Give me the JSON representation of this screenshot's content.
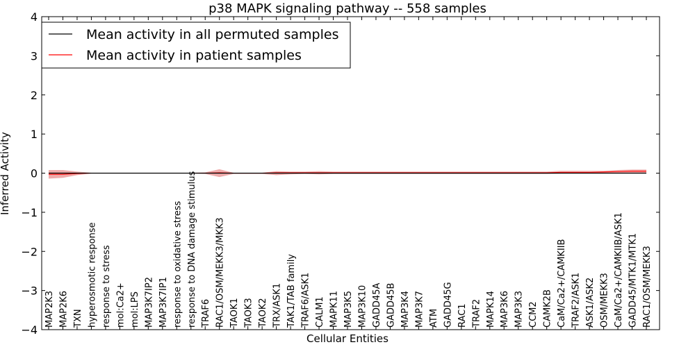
{
  "chart_data": {
    "type": "line",
    "title": "p38 MAPK signaling pathway -- 558 samples",
    "xlabel": "Cellular Entities",
    "ylabel": "Inferred Activity",
    "ylim": [
      -4,
      4
    ],
    "yticks": [
      4,
      3,
      2,
      1,
      0,
      -1,
      -2,
      -3,
      -4
    ],
    "ytick_labels": [
      "4",
      "3",
      "2",
      "1",
      "0",
      "−1",
      "−2",
      "−3",
      "−4"
    ],
    "grid": false,
    "legend_position": "top-left",
    "categories": [
      "MAP2K3",
      "MAP2K6",
      "TXN",
      "hyperosmotic response",
      "response to stress",
      "mol:Ca2+",
      "mol:LPS",
      "MAP3K7IP2",
      "MAP3K7IP1",
      "response to oxidative stress",
      "response to DNA damage stimulus",
      "TRAF6",
      "RAC1/OSM/MEKK3/MKK3",
      "TAOK1",
      "TAOK3",
      "TAOK2",
      "TRX/ASK1",
      "TAK1/TAB family",
      "TRAF6/ASK1",
      "CALM1",
      "MAPK11",
      "MAP3K5",
      "MAP3K10",
      "GADD45A",
      "GADD45B",
      "MAP3K4",
      "MAP3K7",
      "ATM",
      "GADD45G",
      "RAC1",
      "TRAF2",
      "MAPK14",
      "MAP3K6",
      "MAP3K3",
      "CCM2",
      "CAMK2B",
      "CaM/Ca2+/CAMKIIB",
      "TRAF2/ASK1",
      "ASK1/ASK2",
      "OSM/MEKK3",
      "CaM/Ca2+/CAMKIIB/ASK1",
      "GADD45/MTK1/MTK1",
      "RAC1/OSM/MEKK3"
    ],
    "series": [
      {
        "name": "Mean activity in all permuted samples",
        "color": "#000000",
        "values": [
          0,
          0,
          0,
          0,
          0,
          0,
          0,
          0,
          0,
          0,
          0,
          0,
          0,
          0,
          0,
          0,
          0,
          0,
          0,
          0,
          0,
          0,
          0,
          0,
          0,
          0,
          0,
          0,
          0,
          0,
          0,
          0,
          0,
          0,
          0,
          0,
          0,
          0,
          0,
          0,
          0,
          0,
          0
        ],
        "band_upper": [
          0.02,
          0.02,
          0.02,
          0.01,
          0.01,
          0.01,
          0.01,
          0.01,
          0.01,
          0.01,
          0.01,
          0.01,
          0.01,
          0.01,
          0.01,
          0.01,
          0.01,
          0.01,
          0.01,
          0.01,
          0.01,
          0.01,
          0.01,
          0.01,
          0.01,
          0.01,
          0.01,
          0.01,
          0.01,
          0.01,
          0.01,
          0.01,
          0.01,
          0.01,
          0.01,
          0.01,
          0.01,
          0.01,
          0.01,
          0.01,
          0.01,
          0.01,
          0.01
        ],
        "band_lower": [
          -0.02,
          -0.02,
          -0.02,
          -0.01,
          -0.01,
          -0.01,
          -0.01,
          -0.01,
          -0.01,
          -0.01,
          -0.01,
          -0.01,
          -0.01,
          -0.01,
          -0.01,
          -0.01,
          -0.01,
          -0.01,
          -0.01,
          -0.01,
          -0.01,
          -0.01,
          -0.01,
          -0.01,
          -0.01,
          -0.01,
          -0.01,
          -0.01,
          -0.01,
          -0.01,
          -0.01,
          -0.01,
          -0.01,
          -0.01,
          -0.01,
          -0.01,
          -0.01,
          -0.01,
          -0.01,
          -0.01,
          -0.01,
          -0.01,
          -0.01
        ]
      },
      {
        "name": "Mean activity in patient samples",
        "color": "#ff0000",
        "values": [
          -0.03,
          -0.03,
          -0.01,
          0,
          0,
          0,
          0,
          0,
          0,
          0,
          0,
          0,
          0.01,
          0,
          0,
          0,
          0.01,
          0.01,
          0.01,
          0.01,
          0.01,
          0.01,
          0.01,
          0.01,
          0.01,
          0.01,
          0.01,
          0.01,
          0.01,
          0.01,
          0.01,
          0.01,
          0.01,
          0.01,
          0.01,
          0.01,
          0.02,
          0.02,
          0.02,
          0.03,
          0.04,
          0.05,
          0.05
        ],
        "band_upper": [
          0.08,
          0.08,
          0.04,
          0.01,
          0.01,
          0.01,
          0.01,
          0.01,
          0.01,
          0.01,
          0.01,
          0.02,
          0.1,
          0.01,
          0.01,
          0.01,
          0.05,
          0.04,
          0.04,
          0.05,
          0.04,
          0.04,
          0.04,
          0.04,
          0.04,
          0.04,
          0.04,
          0.04,
          0.04,
          0.04,
          0.04,
          0.04,
          0.04,
          0.04,
          0.04,
          0.04,
          0.06,
          0.06,
          0.06,
          0.06,
          0.08,
          0.09,
          0.09
        ],
        "band_lower": [
          -0.14,
          -0.12,
          -0.05,
          -0.01,
          -0.01,
          -0.01,
          -0.01,
          -0.01,
          -0.01,
          -0.01,
          -0.01,
          -0.02,
          -0.1,
          -0.02,
          -0.02,
          -0.02,
          -0.05,
          -0.03,
          -0.02,
          -0.03,
          -0.02,
          -0.02,
          -0.02,
          -0.02,
          -0.02,
          -0.02,
          -0.02,
          -0.02,
          -0.02,
          -0.02,
          -0.02,
          -0.02,
          -0.02,
          -0.02,
          -0.02,
          -0.02,
          -0.01,
          -0.01,
          -0.01,
          0,
          0,
          0.01,
          0.01
        ],
        "band_color": "#e06666"
      }
    ]
  }
}
